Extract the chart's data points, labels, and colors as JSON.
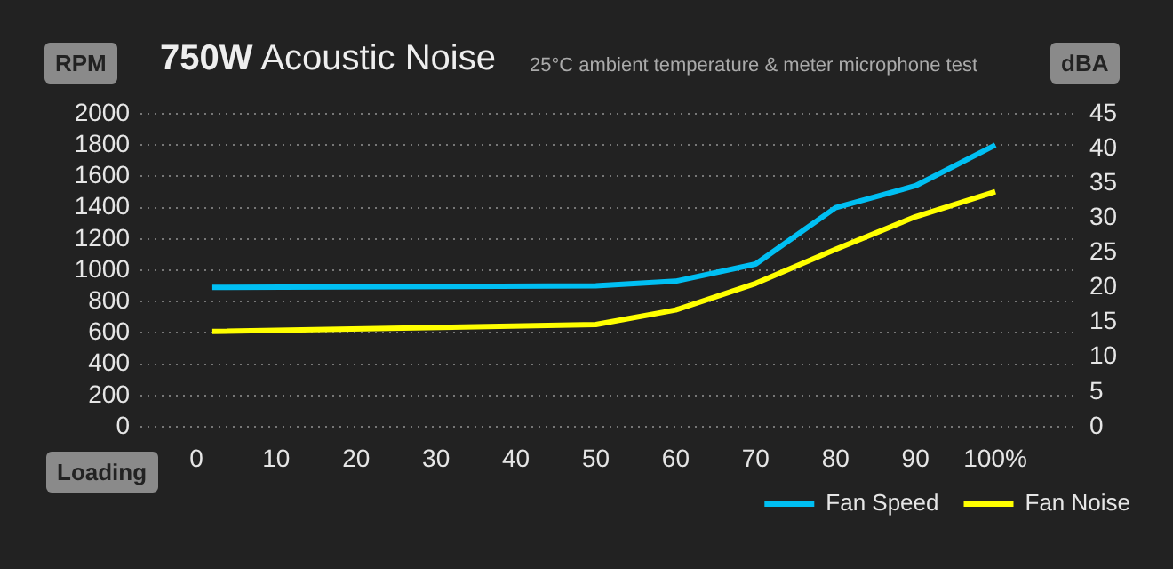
{
  "chart_data": {
    "type": "line",
    "title": "750W Acoustic Noise",
    "subtitle": "25°C ambient temperature & meter microphone test",
    "xlabel": "Loading",
    "ylabel": "RPM",
    "y2label": "dBA",
    "x": [
      2,
      50,
      60,
      70,
      80,
      90,
      100
    ],
    "xlim": [
      -7,
      110
    ],
    "xticks": [
      0,
      10,
      20,
      30,
      40,
      50,
      60,
      70,
      80,
      90,
      {
        "value": 100,
        "label": "100%"
      }
    ],
    "ylim": [
      0,
      2000
    ],
    "yticks": [
      0,
      200,
      400,
      600,
      800,
      1000,
      1200,
      1400,
      1600,
      1800,
      2000
    ],
    "y2lim": [
      0,
      45
    ],
    "y2ticks": [
      0,
      5,
      10,
      15,
      20,
      25,
      30,
      35,
      40,
      45
    ],
    "series": [
      {
        "name": "Fan Speed",
        "color": "#00bff3",
        "values": [
          890,
          900,
          930,
          1040,
          1400,
          1540,
          1800
        ]
      },
      {
        "name": "Fan Noise",
        "color": "#ffff00",
        "axis": "y2",
        "values": [
          13.7,
          14.7,
          16.8,
          20.6,
          25.5,
          30.2,
          33.8
        ]
      }
    ],
    "grid": "y",
    "legend": "bottom right",
    "marker": "none",
    "line_style": "solid"
  }
}
